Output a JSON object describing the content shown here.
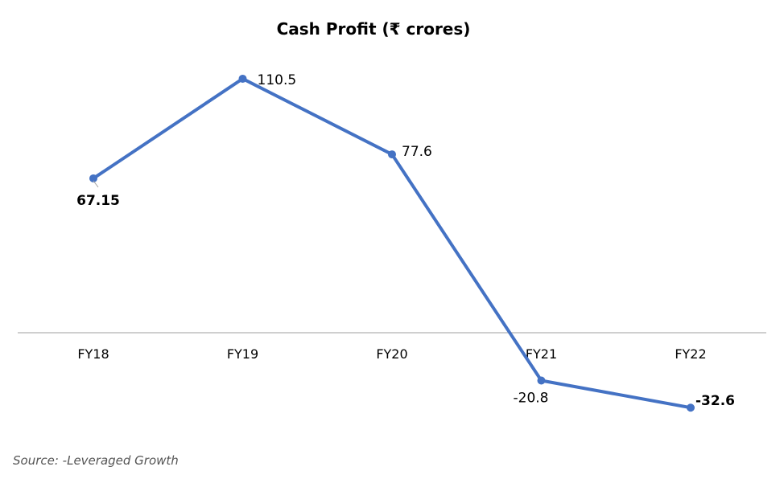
{
  "chart_data": {
    "type": "line",
    "title": "Cash Profit (₹ crores)",
    "categories": [
      "FY18",
      "FY19",
      "FY20",
      "FY21",
      "FY22"
    ],
    "values": [
      67.15,
      110.5,
      77.6,
      -20.8,
      -32.6
    ],
    "labels": [
      "67.15",
      "110.5",
      "77.6",
      "-20.8",
      "-32.6"
    ],
    "xlabel": "",
    "ylabel": "",
    "ylim": [
      -40,
      115
    ],
    "grid": false,
    "legend": "none",
    "line_color": "#4472C4",
    "axis_color": "#BFBFBF"
  },
  "source": "Source: -Leveraged Growth"
}
